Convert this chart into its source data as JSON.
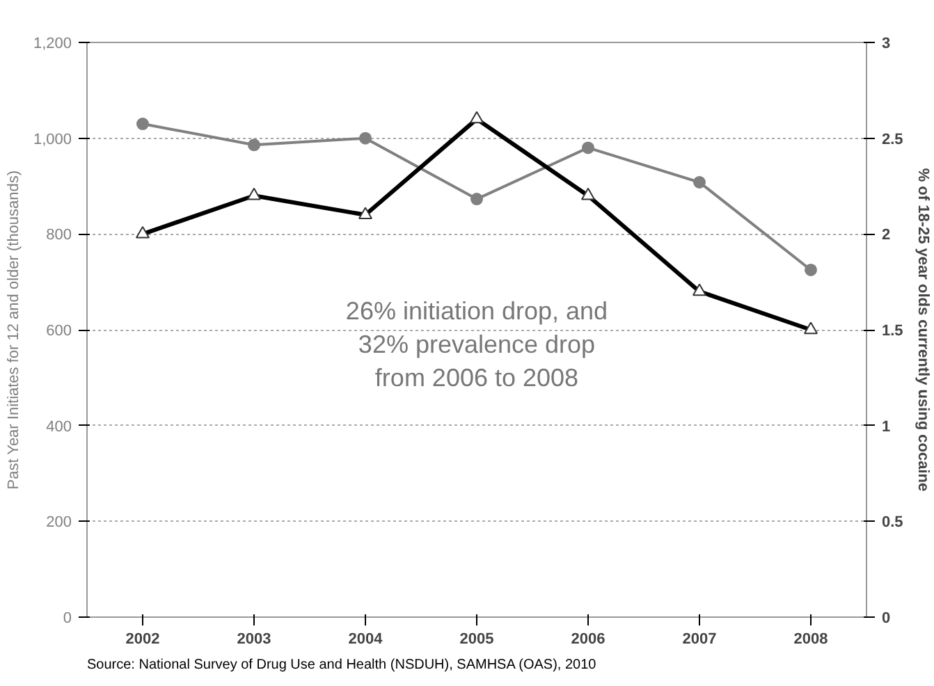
{
  "chart_data": {
    "type": "line",
    "categories": [
      "2002",
      "2003",
      "2004",
      "2005",
      "2006",
      "2007",
      "2008"
    ],
    "ylabel": "Past Year Initiates for 12 and older (thousands)",
    "y2label": "% of 18-25 year olds currently using cocaine",
    "ylim": [
      0,
      1200
    ],
    "yticks": [
      {
        "value": 0,
        "label": "0"
      },
      {
        "value": 200,
        "label": "200"
      },
      {
        "value": 400,
        "label": "400"
      },
      {
        "value": 600,
        "label": "600"
      },
      {
        "value": 800,
        "label": "800"
      },
      {
        "value": 1000,
        "label": "1,000"
      },
      {
        "value": 1200,
        "label": "1,200"
      }
    ],
    "y2lim": [
      0,
      3
    ],
    "y2ticks": [
      0,
      0.5,
      1,
      1.5,
      2,
      2.5,
      3
    ],
    "grid": "y",
    "series": [
      {
        "color": "#808080",
        "marker": "circle",
        "values": [
          1030,
          986,
          1000,
          873,
          980,
          908,
          725
        ]
      },
      {
        "color": "#000000",
        "marker": "triangle",
        "axis": "y2",
        "values": [
          2.0,
          2.2,
          2.1,
          2.6,
          2.2,
          1.7,
          1.5
        ]
      }
    ],
    "annotations": [
      "26% initiation drop, and\n32% prevalence drop\nfrom 2006 to 2008",
      "Source: National Survey of Drug Use and Health (NSDUH), SAMHSA (OAS), 2010"
    ]
  }
}
